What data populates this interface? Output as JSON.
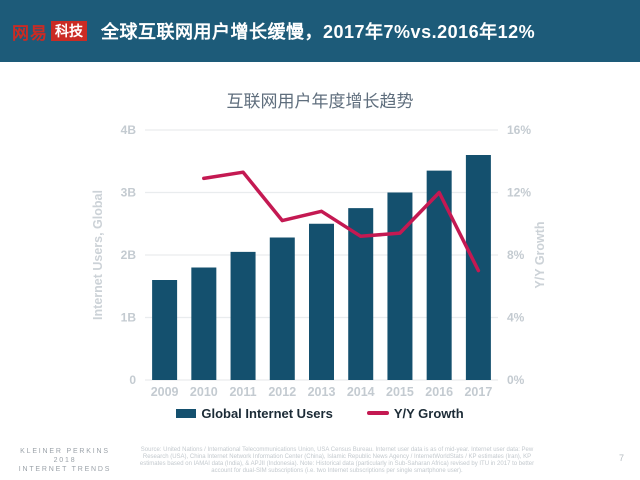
{
  "header": {
    "logo_text": "网易",
    "logo_badge": "科技",
    "title": "全球互联网用户增长缓慢，2017年7%vs.2016年12%"
  },
  "chart_data": {
    "type": "combo",
    "title": "互联网用户年度增长趋势",
    "categories": [
      "2009",
      "2010",
      "2011",
      "2012",
      "2013",
      "2014",
      "2015",
      "2016",
      "2017"
    ],
    "series": [
      {
        "name": "Global Internet Users",
        "render": "bar",
        "axis": "left",
        "unit": "billions",
        "values": [
          1.6,
          1.8,
          2.05,
          2.28,
          2.5,
          2.75,
          3.0,
          3.35,
          3.6
        ]
      },
      {
        "name": "Y/Y Growth",
        "render": "line",
        "axis": "right",
        "unit": "percent",
        "values": [
          null,
          12.9,
          13.3,
          10.2,
          10.8,
          9.2,
          9.4,
          12,
          7
        ]
      }
    ],
    "left_axis": {
      "label": "Internet Users, Global",
      "min": 0,
      "max": 4,
      "ticks": [
        "0",
        "1B",
        "2B",
        "3B",
        "4B"
      ]
    },
    "right_axis": {
      "label": "Y/Y Growth",
      "min": 0,
      "max": 16,
      "ticks": [
        "0%",
        "4%",
        "8%",
        "12%",
        "16%"
      ]
    },
    "grid": true,
    "legend_position": "bottom"
  },
  "footer": {
    "brand_lines": [
      "KLEINER PERKINS",
      "2018",
      "INTERNET TRENDS"
    ],
    "source_note": "Source: United Nations / International Telecommunications Union, USA Census Bureau. Internet user data is as of mid-year. Internet user data: Pew Research (USA), China Internet Network Information Center (China), Islamic Republic News Agency / InternetWorldStats / KP estimates (Iran), KP estimates based on IAMAI data (India), & APJII (Indonesia). Note: Historical data (particularly in Sub-Saharan Africa) revised by ITU in 2017 to better account for dual-SIM subscriptions (i.e. two Internet subscriptions per single smartphone user).",
    "page_number": "7"
  },
  "colors": {
    "header_bg": "#1d5b79",
    "logo_red": "#cb2b24",
    "bar": "#14506e",
    "line": "#c41952",
    "grid": "#e9ecee",
    "axis_text": "#c4cbd1",
    "axis_title": "#ccd2d7",
    "chart_title": "#5f6e7d",
    "legend_text": "#1c2b36"
  }
}
